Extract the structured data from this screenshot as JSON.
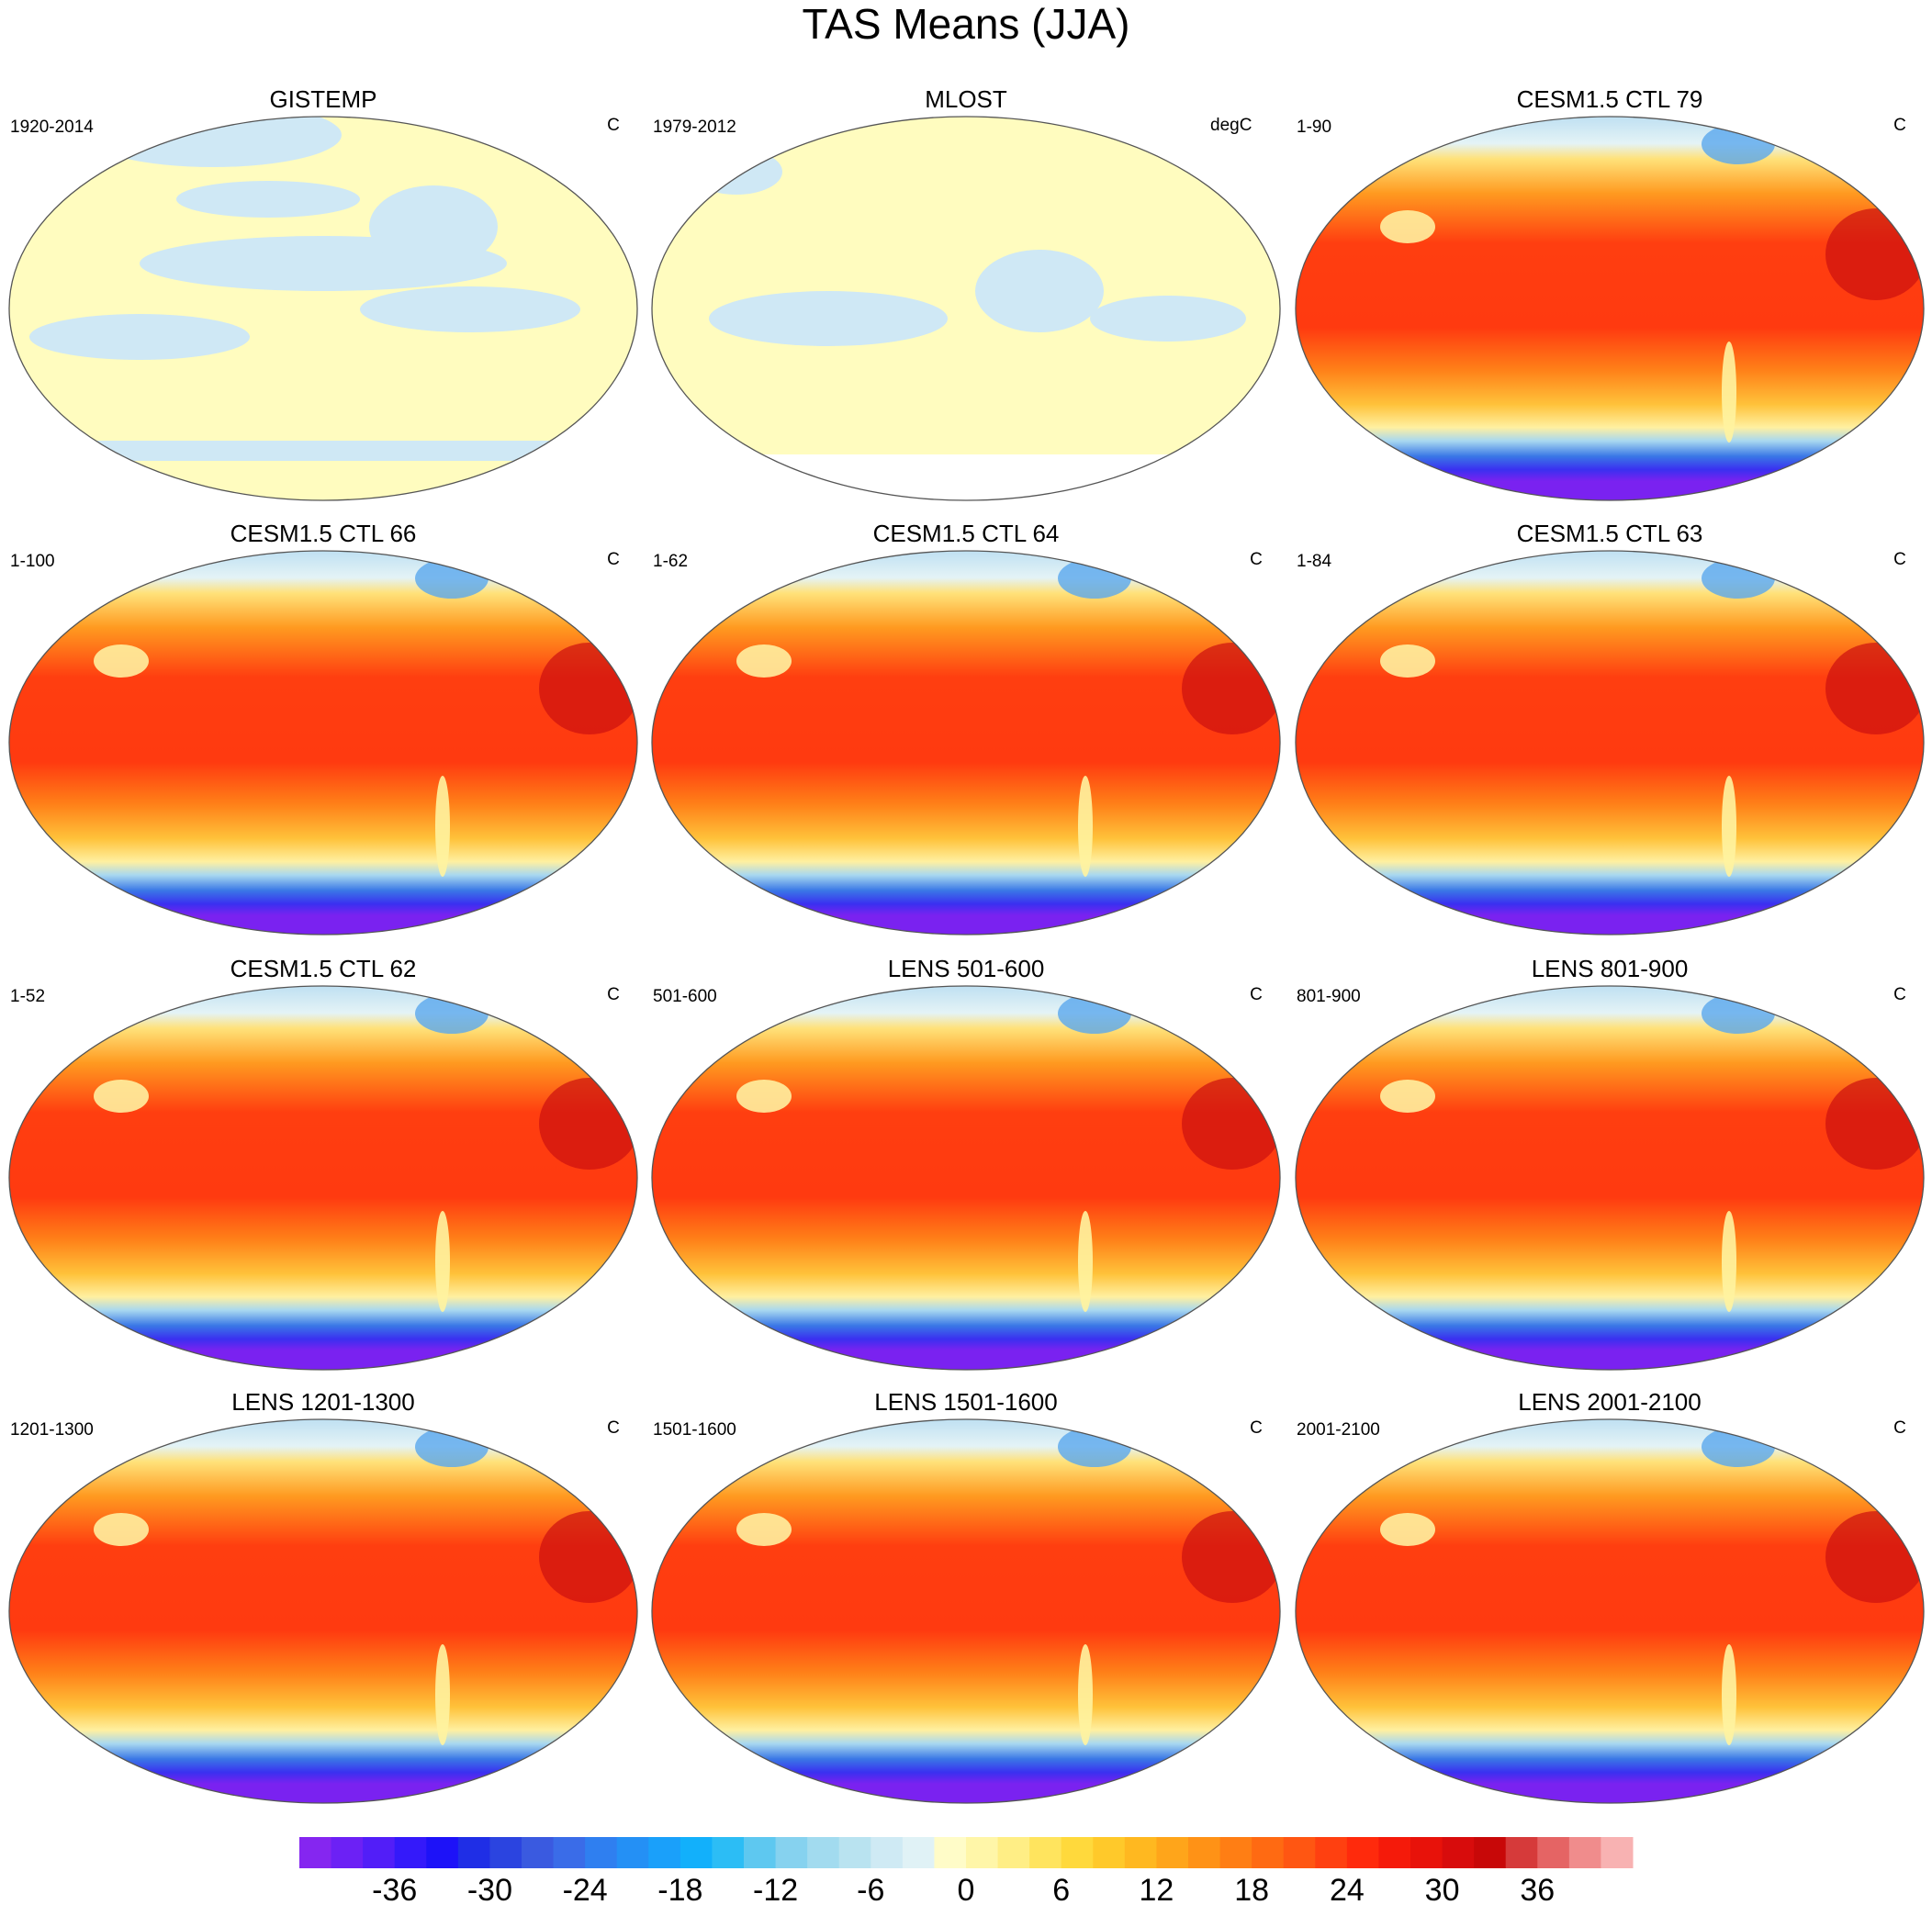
{
  "title": "TAS Means (JJA)",
  "panels": [
    {
      "title": "GISTEMP",
      "left": "1920-2014",
      "right": "C"
    },
    {
      "title": "MLOST",
      "left": "1979-2012",
      "right": "degC"
    },
    {
      "title": "CESM1.5 CTL 79",
      "left": "1-90",
      "right": "C"
    },
    {
      "title": "CESM1.5 CTL 66",
      "left": "1-100",
      "right": "C"
    },
    {
      "title": "CESM1.5 CTL 64",
      "left": "1-62",
      "right": "C"
    },
    {
      "title": "CESM1.5 CTL 63",
      "left": "1-84",
      "right": "C"
    },
    {
      "title": "CESM1.5 CTL 62",
      "left": "1-52",
      "right": "C"
    },
    {
      "title": "LENS 501-600",
      "left": "501-600",
      "right": "C"
    },
    {
      "title": "LENS 801-900",
      "left": "801-900",
      "right": "C"
    },
    {
      "title": "LENS 1201-1300",
      "left": "1201-1300",
      "right": "C"
    },
    {
      "title": "LENS 1501-1600",
      "left": "1501-1600",
      "right": "C"
    },
    {
      "title": "LENS 2001-2100",
      "left": "2001-2100",
      "right": "C"
    }
  ],
  "colorbar": {
    "range": [
      -42,
      42
    ],
    "ticks": [
      -36,
      -30,
      -24,
      -18,
      -12,
      -6,
      0,
      6,
      12,
      18,
      24,
      30,
      36
    ],
    "colors": [
      "#8526f0",
      "#6c21f5",
      "#521ef8",
      "#3419fa",
      "#1d12f8",
      "#1f2ee6",
      "#2b44e0",
      "#3a5ae0",
      "#3a6ce8",
      "#2f7ff0",
      "#2490f5",
      "#1aa0fa",
      "#12b0fb",
      "#2cbdf5",
      "#5ec8f0",
      "#86d2ef",
      "#a2dbef",
      "#b9e3f0",
      "#cfeaf4",
      "#e0f2f6",
      "#fffcc8",
      "#fff6a8",
      "#ffee85",
      "#ffe45e",
      "#ffd93c",
      "#ffc92a",
      "#ffb820",
      "#ffa51a",
      "#ff9216",
      "#ff7e14",
      "#ff6a12",
      "#ff5612",
      "#ff4010",
      "#ff2a0c",
      "#f51a0a",
      "#e8120a",
      "#d80c0c",
      "#c80808",
      "#d63a3a",
      "#e56464",
      "#f08c8c",
      "#f8b2b2"
    ]
  }
}
